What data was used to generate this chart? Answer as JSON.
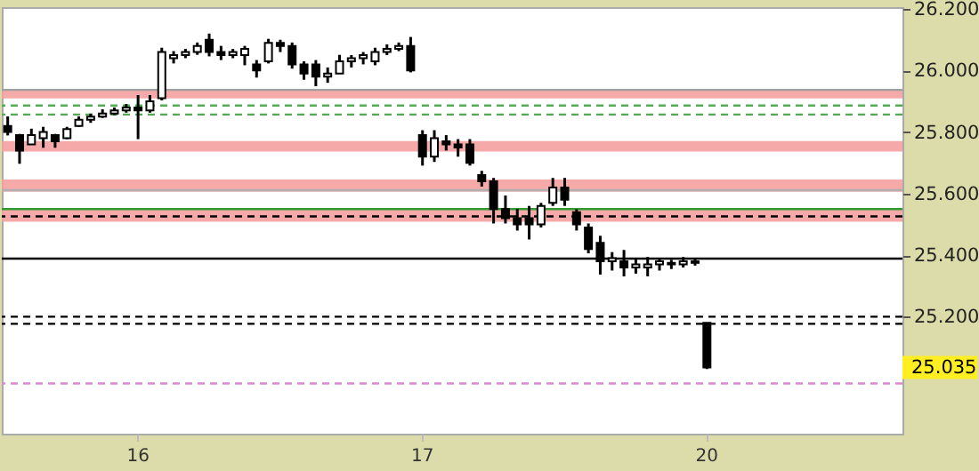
{
  "chart_data": {
    "type": "candlestick",
    "categories": [
      null,
      null,
      null,
      null,
      null,
      null,
      null,
      null,
      null,
      null,
      null,
      "16",
      null,
      null,
      null,
      null,
      null,
      null,
      null,
      null,
      null,
      null,
      null,
      null,
      null,
      null,
      null,
      null,
      null,
      null,
      null,
      null,
      null,
      null,
      null,
      "17",
      null,
      null,
      null,
      null,
      null,
      null,
      null,
      null,
      null,
      null,
      null,
      null,
      null,
      null,
      null,
      null,
      null,
      null,
      null,
      null,
      null,
      null,
      null,
      "20",
      null,
      null,
      null,
      null,
      null,
      null,
      null,
      null,
      null,
      null,
      null,
      null,
      null,
      null,
      null,
      null
    ],
    "ohlc": [
      [
        25.82,
        25.851,
        25.789,
        25.8
      ],
      [
        25.79,
        25.794,
        25.697,
        25.74
      ],
      [
        25.76,
        25.811,
        25.76,
        25.79
      ],
      [
        25.78,
        25.817,
        25.749,
        25.8
      ],
      [
        25.79,
        25.794,
        25.749,
        25.77
      ],
      [
        25.78,
        25.817,
        25.777,
        25.81
      ],
      [
        25.82,
        25.851,
        25.817,
        25.84
      ],
      [
        25.84,
        25.86,
        25.83,
        25.85
      ],
      [
        25.85,
        25.874,
        25.846,
        25.86
      ],
      [
        25.86,
        25.88,
        25.855,
        25.87
      ],
      [
        25.87,
        25.891,
        25.863,
        25.88
      ],
      [
        25.88,
        25.92,
        25.777,
        25.87
      ],
      [
        25.87,
        25.92,
        25.863,
        25.9
      ],
      [
        25.91,
        26.074,
        25.903,
        26.06
      ],
      [
        26.04,
        26.063,
        26.023,
        26.05
      ],
      [
        26.05,
        26.07,
        26.04,
        26.06
      ],
      [
        26.06,
        26.091,
        26.051,
        26.08
      ],
      [
        26.1,
        26.12,
        26.046,
        26.06
      ],
      [
        26.06,
        26.08,
        26.034,
        26.05
      ],
      [
        26.05,
        26.07,
        26.04,
        26.06
      ],
      [
        26.05,
        26.08,
        26.017,
        26.07
      ],
      [
        26.02,
        26.034,
        25.977,
        26.0
      ],
      [
        26.03,
        26.103,
        26.023,
        26.09
      ],
      [
        26.09,
        26.1,
        26.06,
        26.08
      ],
      [
        26.08,
        26.091,
        26.006,
        26.02
      ],
      [
        26.02,
        26.03,
        25.97,
        25.99
      ],
      [
        26.02,
        26.034,
        25.949,
        25.98
      ],
      [
        25.98,
        26.01,
        25.96,
        25.99
      ],
      [
        25.99,
        26.051,
        25.989,
        26.03
      ],
      [
        26.03,
        26.05,
        26.01,
        26.04
      ],
      [
        26.04,
        26.06,
        26.02,
        26.05
      ],
      [
        26.03,
        26.074,
        26.017,
        26.06
      ],
      [
        26.06,
        26.085,
        26.05,
        26.07
      ],
      [
        26.07,
        26.091,
        26.063,
        26.08
      ],
      [
        26.08,
        26.109,
        25.994,
        26.0
      ],
      [
        25.79,
        25.806,
        25.691,
        25.72
      ],
      [
        25.72,
        25.806,
        25.703,
        25.78
      ],
      [
        25.77,
        25.79,
        25.74,
        25.76
      ],
      [
        25.76,
        25.777,
        25.72,
        25.75
      ],
      [
        25.76,
        25.777,
        25.691,
        25.7
      ],
      [
        25.66,
        25.674,
        25.623,
        25.64
      ],
      [
        25.64,
        25.651,
        25.503,
        25.55
      ],
      [
        25.55,
        25.594,
        25.503,
        25.52
      ],
      [
        25.52,
        25.55,
        25.48,
        25.5
      ],
      [
        25.52,
        25.56,
        25.451,
        25.5
      ],
      [
        25.5,
        25.57,
        25.49,
        25.56
      ],
      [
        25.57,
        25.651,
        25.56,
        25.62
      ],
      [
        25.62,
        25.651,
        25.56,
        25.58
      ],
      [
        25.54,
        25.549,
        25.48,
        25.5
      ],
      [
        25.49,
        25.503,
        25.406,
        25.42
      ],
      [
        25.44,
        25.463,
        25.337,
        25.38
      ],
      [
        25.38,
        25.41,
        25.35,
        25.39
      ],
      [
        25.38,
        25.417,
        25.331,
        25.36
      ],
      [
        25.36,
        25.39,
        25.34,
        25.37
      ],
      [
        25.36,
        25.394,
        25.331,
        25.37
      ],
      [
        25.37,
        25.39,
        25.35,
        25.38
      ],
      [
        25.37,
        25.385,
        25.355,
        25.375
      ],
      [
        25.37,
        25.394,
        25.36,
        25.38
      ],
      [
        25.38,
        25.389,
        25.366,
        25.375
      ],
      [
        25.18,
        25.18,
        25.03,
        25.035
      ],
      null,
      null,
      null,
      null,
      null,
      null,
      null,
      null,
      null,
      null,
      null,
      null,
      null,
      null,
      null,
      null
    ],
    "ylim": [
      24.82,
      26.206
    ],
    "yticks": [
      {
        "value": 25.2,
        "label": "25.200"
      },
      {
        "value": 25.4,
        "label": "25.400"
      },
      {
        "value": 25.6,
        "label": "25.600"
      },
      {
        "value": 25.8,
        "label": "25.800"
      },
      {
        "value": 26.0,
        "label": "26.000"
      },
      {
        "value": 26.2,
        "label": "26.200"
      }
    ],
    "bands": [
      {
        "axis": "y",
        "from": 25.909,
        "to": 25.937,
        "color": "#f4a0a0"
      },
      {
        "axis": "y",
        "from": 25.737,
        "to": 25.771,
        "color": "#f4a0a0"
      },
      {
        "axis": "y",
        "from": 25.606,
        "to": 25.646,
        "color": "#f4a0a0"
      },
      {
        "axis": "y",
        "from": 25.509,
        "to": 25.549,
        "color": "#f4a0a0"
      }
    ],
    "ref_lines": [
      {
        "axis": "y",
        "value": 25.937,
        "color": "#a0a0a0",
        "line_style": "solid"
      },
      {
        "axis": "y",
        "value": 25.886,
        "color": "#55aa55",
        "line_style": "dashed"
      },
      {
        "axis": "y",
        "value": 25.857,
        "color": "#55aa55",
        "line_style": "dashed"
      },
      {
        "axis": "y",
        "value": 25.611,
        "color": "#b0b0b0",
        "line_style": "solid"
      },
      {
        "axis": "y",
        "value": 25.55,
        "color": "#339933",
        "line_style": "solid"
      },
      {
        "axis": "y",
        "value": 25.526,
        "color": "#000000",
        "line_style": "dashed"
      },
      {
        "axis": "y",
        "value": 25.389,
        "color": "#000000",
        "line_style": "solid"
      },
      {
        "axis": "y",
        "value": 25.2,
        "color": "#000000",
        "line_style": "dashed"
      },
      {
        "axis": "y",
        "value": 25.177,
        "color": "#000000",
        "line_style": "dashed"
      },
      {
        "axis": "y",
        "value": 24.983,
        "color": "#dd88cc",
        "line_style": "dashed"
      }
    ],
    "annotations": [
      "25.035"
    ],
    "grid": false
  }
}
